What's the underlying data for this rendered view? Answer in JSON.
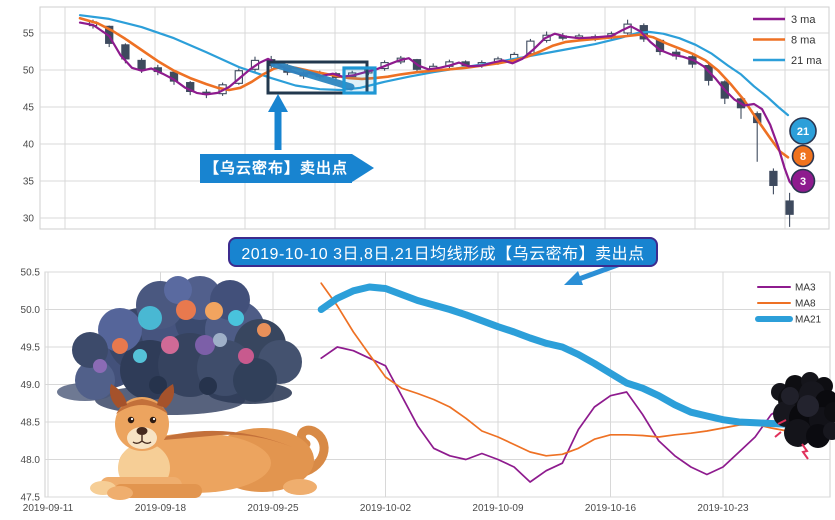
{
  "colors": {
    "ma3": "#8E1B8E",
    "ma8": "#EE7124",
    "ma21": "#2C9FD9",
    "candle": "#3E4A5E",
    "grid": "#D8D8D8",
    "frame": "#CFCFCF",
    "axis_text": "#4A4A4A",
    "annotation_blue": "#1884D0",
    "banner_border": "#3D2B8E",
    "box_dark": "#22384E",
    "box_blue": "#1F97D4"
  },
  "annotations": {
    "callout_text": "【乌云密布】卖出点",
    "banner_text": "2019-10-10 3日,8日,21日均线形成【乌云密布】卖出点"
  },
  "chart_data": [
    {
      "id": "top-candlestick-chart",
      "type": "candlestick+line",
      "y_ticks": [
        30,
        35,
        40,
        45,
        50,
        55
      ],
      "ylim": [
        28.5,
        58.5
      ],
      "grid": true,
      "legend_position": "upper-right",
      "legend": [
        {
          "name": "3 ma",
          "color": "#8E1B8E"
        },
        {
          "name": "8 ma",
          "color": "#EE7124"
        },
        {
          "name": "21 ma",
          "color": "#2C9FD9"
        }
      ],
      "badges": [
        {
          "label": "21",
          "fill": "#2C9FD9"
        },
        {
          "label": "8",
          "fill": "#F0731E"
        },
        {
          "label": "3",
          "fill": "#8E1B8E"
        }
      ],
      "series": [
        {
          "name": "21 ma",
          "color": "#2C9FD9",
          "points": [
            [
              -0.8,
              57.4
            ],
            [
              1,
              56.9
            ],
            [
              3,
              55.8
            ],
            [
              5,
              54.3
            ],
            [
              7,
              52.4
            ],
            [
              9,
              50.4
            ],
            [
              11,
              48.9
            ],
            [
              12.5,
              47.9
            ],
            [
              14,
              47.4
            ],
            [
              15.3,
              47.3
            ],
            [
              16.5,
              47.6
            ],
            [
              18,
              48.4
            ],
            [
              19.5,
              49.1
            ],
            [
              21,
              49.7
            ],
            [
              23,
              50.4
            ],
            [
              25,
              51.1
            ],
            [
              27,
              51.9
            ],
            [
              29,
              52.7
            ],
            [
              31,
              53.5
            ],
            [
              32.5,
              54.3
            ],
            [
              33.6,
              55.0
            ],
            [
              34.3,
              55.15
            ],
            [
              35.2,
              54.9
            ],
            [
              36.2,
              54.3
            ],
            [
              37.2,
              53.4
            ],
            [
              38.2,
              52.2
            ],
            [
              39.2,
              50.6
            ],
            [
              40,
              49.4
            ],
            [
              40.8,
              47.8
            ],
            [
              41.6,
              46.4
            ],
            [
              42.3,
              45.0
            ],
            [
              42.9,
              43.9
            ]
          ]
        },
        {
          "name": "8 ma",
          "color": "#EE7124",
          "points": [
            [
              -0.8,
              57.0
            ],
            [
              0.3,
              56.3
            ],
            [
              1.2,
              55.3
            ],
            [
              2,
              54.2
            ],
            [
              3,
              52.7
            ],
            [
              4,
              51.2
            ],
            [
              5,
              49.9
            ],
            [
              6,
              48.9
            ],
            [
              7,
              48.1
            ],
            [
              7.7,
              47.6
            ],
            [
              8.4,
              47.3
            ],
            [
              9.1,
              47.6
            ],
            [
              9.8,
              48.4
            ],
            [
              10.5,
              49.4
            ],
            [
              11.2,
              50.2
            ],
            [
              11.8,
              50.5
            ],
            [
              12.5,
              50.3
            ],
            [
              13.3,
              49.9
            ],
            [
              14.1,
              49.6
            ],
            [
              15,
              49.2
            ],
            [
              15.8,
              48.9
            ],
            [
              16.6,
              48.8
            ],
            [
              17.4,
              48.9
            ],
            [
              18.2,
              49.1
            ],
            [
              19,
              49.4
            ],
            [
              20,
              49.7
            ],
            [
              21,
              49.9
            ],
            [
              22,
              50.1
            ],
            [
              23,
              50.3
            ],
            [
              24,
              50.6
            ],
            [
              25,
              50.9
            ],
            [
              26,
              51.3
            ],
            [
              26.8,
              51.8
            ],
            [
              27.6,
              52.5
            ],
            [
              28.4,
              53.3
            ],
            [
              29.2,
              53.8
            ],
            [
              30,
              54.0
            ],
            [
              31,
              54.2
            ],
            [
              32,
              54.4
            ],
            [
              33,
              54.6
            ],
            [
              33.8,
              54.8
            ],
            [
              34.6,
              54.4
            ],
            [
              35.4,
              53.6
            ],
            [
              36.2,
              52.9
            ],
            [
              37,
              52.2
            ],
            [
              37.8,
              51.3
            ],
            [
              38.6,
              49.9
            ],
            [
              39.4,
              48.0
            ],
            [
              40.2,
              45.9
            ],
            [
              41,
              43.3
            ],
            [
              41.8,
              40.8
            ],
            [
              42.4,
              39.0
            ],
            [
              42.9,
              38.2
            ]
          ]
        },
        {
          "name": "3 ma",
          "color": "#8E1B8E",
          "points": [
            [
              -0.8,
              56.4
            ],
            [
              0,
              56.1
            ],
            [
              1,
              54.6
            ],
            [
              1.7,
              52.0
            ],
            [
              2.4,
              50.3
            ],
            [
              3,
              49.9
            ],
            [
              3.6,
              50.2
            ],
            [
              4.3,
              49.5
            ],
            [
              5,
              48.7
            ],
            [
              5.7,
              47.6
            ],
            [
              6.4,
              46.9
            ],
            [
              7,
              46.7
            ],
            [
              7.7,
              46.9
            ],
            [
              8.4,
              47.7
            ],
            [
              9,
              48.8
            ],
            [
              9.7,
              50.1
            ],
            [
              10.3,
              51.0
            ],
            [
              10.8,
              51.5
            ],
            [
              11.4,
              50.8
            ],
            [
              12,
              50.1
            ],
            [
              12.7,
              49.5
            ],
            [
              13.4,
              49.6
            ],
            [
              14.1,
              49.2
            ],
            [
              14.8,
              49.5
            ],
            [
              15.4,
              49.1
            ],
            [
              16.1,
              49.3
            ],
            [
              16.8,
              49.7
            ],
            [
              17.5,
              50.1
            ],
            [
              18.2,
              50.7
            ],
            [
              18.9,
              51.3
            ],
            [
              19.5,
              51.6
            ],
            [
              20.1,
              50.6
            ],
            [
              20.7,
              50.1
            ],
            [
              21.4,
              50.3
            ],
            [
              22,
              50.6
            ],
            [
              22.6,
              51.0
            ],
            [
              23.2,
              50.5
            ],
            [
              24,
              50.6
            ],
            [
              24.7,
              51.0
            ],
            [
              25.3,
              51.3
            ],
            [
              25.9,
              50.9
            ],
            [
              26.5,
              51.5
            ],
            [
              27.2,
              52.8
            ],
            [
              27.9,
              54.3
            ],
            [
              28.5,
              54.9
            ],
            [
              29.2,
              54.5
            ],
            [
              30,
              54.3
            ],
            [
              31,
              54.4
            ],
            [
              32,
              54.6
            ],
            [
              32.6,
              55.3
            ],
            [
              33.2,
              55.9
            ],
            [
              33.8,
              55.2
            ],
            [
              34.4,
              53.8
            ],
            [
              35,
              52.7
            ],
            [
              35.7,
              52.1
            ],
            [
              36.4,
              51.8
            ],
            [
              37.1,
              51.3
            ],
            [
              37.7,
              50.5
            ],
            [
              38.4,
              48.9
            ],
            [
              39,
              47.3
            ],
            [
              39.6,
              46.0
            ],
            [
              40.2,
              45.2
            ],
            [
              40.8,
              45.4
            ],
            [
              41.3,
              44.7
            ],
            [
              41.8,
              42.6
            ],
            [
              42.3,
              39.6
            ],
            [
              42.7,
              36.7
            ],
            [
              43,
              34.9
            ],
            [
              43.3,
              34.1
            ]
          ]
        }
      ],
      "candles": [
        [
          0,
          56.0,
          56.5,
          56.8,
          55.6
        ],
        [
          1,
          55.9,
          53.6,
          56.0,
          53.1
        ],
        [
          2,
          53.4,
          51.5,
          53.6,
          50.9
        ],
        [
          3,
          51.3,
          50.1,
          51.6,
          49.6
        ],
        [
          4,
          50.3,
          49.8,
          50.7,
          49.3
        ],
        [
          5,
          49.7,
          48.5,
          49.9,
          48.0
        ],
        [
          6,
          48.3,
          47.1,
          48.5,
          46.6
        ],
        [
          7,
          47.0,
          46.7,
          47.4,
          46.2
        ],
        [
          8,
          46.8,
          48.0,
          48.3,
          46.5
        ],
        [
          9,
          48.2,
          49.9,
          50.2,
          48.0
        ],
        [
          10,
          50.1,
          51.3,
          51.8,
          49.8
        ],
        [
          11,
          51.4,
          50.6,
          51.9,
          50.2
        ],
        [
          12,
          50.5,
          49.7,
          50.8,
          49.3
        ],
        [
          13,
          49.6,
          49.2,
          49.9,
          48.8
        ],
        [
          14,
          49.1,
          49.6,
          49.9,
          48.8
        ],
        [
          15,
          49.5,
          49.0,
          49.7,
          48.6
        ],
        [
          16,
          49.1,
          49.6,
          49.9,
          48.8
        ],
        [
          17,
          49.6,
          50.1,
          50.4,
          49.3
        ],
        [
          18,
          50.2,
          51.0,
          51.3,
          49.9
        ],
        [
          19,
          51.1,
          51.6,
          51.9,
          50.8
        ],
        [
          20,
          51.4,
          50.1,
          51.5,
          49.8
        ],
        [
          21,
          50.2,
          50.5,
          50.9,
          49.9
        ],
        [
          22,
          50.5,
          51.1,
          51.4,
          50.2
        ],
        [
          23,
          51.1,
          50.6,
          51.3,
          50.3
        ],
        [
          24,
          50.6,
          51.0,
          51.3,
          50.3
        ],
        [
          25,
          51.0,
          51.5,
          51.8,
          50.7
        ],
        [
          26,
          51.4,
          52.1,
          52.4,
          51.1
        ],
        [
          27,
          52.2,
          53.9,
          54.2,
          52.0
        ],
        [
          28,
          54.0,
          54.7,
          55.2,
          53.7
        ],
        [
          29,
          54.6,
          54.3,
          55.0,
          54.0
        ],
        [
          30,
          54.3,
          54.6,
          54.9,
          54.0
        ],
        [
          31,
          54.5,
          54.2,
          54.8,
          53.9
        ],
        [
          32,
          54.4,
          54.9,
          55.2,
          54.1
        ],
        [
          33,
          55.0,
          56.2,
          56.8,
          54.8
        ],
        [
          34,
          56.0,
          54.2,
          56.3,
          53.8
        ],
        [
          35,
          54.0,
          52.5,
          54.2,
          52.0
        ],
        [
          36,
          52.4,
          51.9,
          52.8,
          51.4
        ],
        [
          37,
          51.8,
          50.8,
          52.0,
          50.3
        ],
        [
          38,
          50.6,
          48.6,
          50.8,
          47.9
        ],
        [
          39,
          48.4,
          46.2,
          48.6,
          45.4
        ],
        [
          40,
          46.1,
          44.9,
          46.5,
          43.4
        ],
        [
          41,
          44.1,
          42.9,
          44.4,
          37.6
        ],
        [
          42,
          36.3,
          34.4,
          36.7,
          33.2
        ],
        [
          43,
          32.3,
          30.5,
          33.4,
          28.8
        ]
      ]
    },
    {
      "id": "bottom-ma-zoom-chart",
      "type": "line",
      "grid": true,
      "legend_position": "upper-right",
      "y_ticks": [
        {
          "label": "47.5",
          "v": 47.5
        },
        {
          "label": "48.0",
          "v": 48.0
        },
        {
          "label": "48.5",
          "v": 48.5
        },
        {
          "label": "49.0",
          "v": 49.0
        },
        {
          "label": "49.5",
          "v": 49.5
        },
        {
          "label": "50.0",
          "v": 50.0
        },
        {
          "label": "50.5",
          "v": 50.5
        }
      ],
      "ylim": [
        47.5,
        50.5
      ],
      "x_ticks": [
        {
          "label": "2019-09-11",
          "day": 0
        },
        {
          "label": "2019-09-18",
          "day": 7
        },
        {
          "label": "2019-09-25",
          "day": 14
        },
        {
          "label": "2019-10-02",
          "day": 21
        },
        {
          "label": "2019-10-09",
          "day": 28
        },
        {
          "label": "2019-10-16",
          "day": 35
        },
        {
          "label": "2019-10-23",
          "day": 42
        }
      ],
      "start_day": 17,
      "legend": [
        {
          "name": "MA3",
          "color": "#8E1B8E",
          "width": 2
        },
        {
          "name": "MA8",
          "color": "#EE7124",
          "width": 2
        },
        {
          "name": "MA21",
          "color": "#2C9FD9",
          "width": 6
        }
      ],
      "series": [
        {
          "name": "MA3",
          "color": "#8E1B8E",
          "width": 1.7,
          "values": [
            49.35,
            49.5,
            49.45,
            49.35,
            49.25,
            48.85,
            48.45,
            48.15,
            48.05,
            48.0,
            48.08,
            48.0,
            47.9,
            47.7,
            47.85,
            47.95,
            48.4,
            48.7,
            48.85,
            48.9,
            48.6,
            48.25,
            48.05,
            47.9,
            47.8,
            47.9,
            48.1,
            48.3,
            48.6,
            48.73,
            48.6
          ]
        },
        {
          "name": "MA8",
          "color": "#EE7124",
          "width": 1.7,
          "values": [
            50.35,
            50.05,
            49.7,
            49.4,
            49.1,
            48.95,
            48.88,
            48.8,
            48.7,
            48.55,
            48.38,
            48.3,
            48.2,
            48.1,
            48.05,
            48.07,
            48.15,
            48.27,
            48.33,
            48.33,
            48.32,
            48.3,
            48.33,
            48.35,
            48.38,
            48.42,
            48.46,
            48.47,
            48.42,
            48.38,
            48.4
          ]
        },
        {
          "name": "MA21",
          "color": "#2C9FD9",
          "width": 7,
          "values": [
            50.0,
            50.15,
            50.25,
            50.3,
            50.28,
            50.2,
            50.12,
            50.06,
            50.0,
            49.93,
            49.85,
            49.77,
            49.7,
            49.62,
            49.55,
            49.5,
            49.4,
            49.28,
            49.15,
            49.02,
            48.95,
            48.85,
            48.73,
            48.63,
            48.58,
            48.53,
            48.5,
            48.49,
            48.48,
            48.47,
            48.47
          ]
        }
      ]
    }
  ]
}
